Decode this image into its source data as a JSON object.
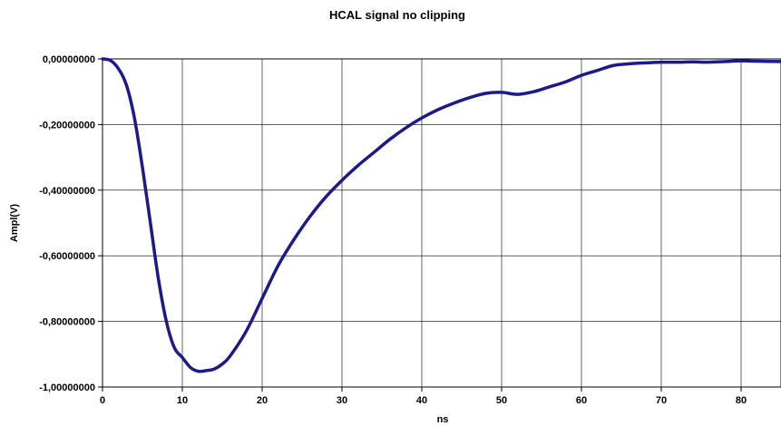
{
  "chart_data": {
    "type": "line",
    "title": "HCAL signal no clipping",
    "xlabel": "ns",
    "ylabel": "Ampl(V)",
    "xlim": [
      0,
      85
    ],
    "ylim": [
      -1.0,
      0.0
    ],
    "xticks": [
      0,
      10,
      20,
      30,
      40,
      50,
      60,
      70,
      80
    ],
    "xtick_labels": [
      "0",
      "10",
      "20",
      "30",
      "40",
      "50",
      "60",
      "70",
      "80"
    ],
    "yticks": [
      0.0,
      -0.2,
      -0.4,
      -0.6,
      -0.8,
      -1.0
    ],
    "ytick_labels": [
      "0,00000000",
      "-0,20000000",
      "-0,40000000",
      "-0,60000000",
      "-0,80000000",
      "-1,00000000"
    ],
    "grid": true,
    "legend": "none",
    "series": [
      {
        "color": "#1a1a8c",
        "x": [
          0,
          1,
          2,
          3,
          4,
          5,
          6,
          7,
          8,
          9,
          10,
          11,
          12,
          13,
          14,
          15,
          16,
          18,
          20,
          22,
          24,
          26,
          28,
          30,
          32,
          34,
          36,
          38,
          40,
          42,
          44,
          46,
          48,
          50,
          52,
          54,
          56,
          58,
          60,
          62,
          64,
          66,
          68,
          70,
          72,
          74,
          76,
          78,
          80,
          82,
          85
        ],
        "y": [
          0.0,
          -0.005,
          -0.03,
          -0.08,
          -0.18,
          -0.33,
          -0.5,
          -0.67,
          -0.8,
          -0.88,
          -0.91,
          -0.94,
          -0.952,
          -0.95,
          -0.945,
          -0.93,
          -0.905,
          -0.83,
          -0.73,
          -0.63,
          -0.55,
          -0.48,
          -0.42,
          -0.37,
          -0.325,
          -0.285,
          -0.245,
          -0.21,
          -0.18,
          -0.155,
          -0.135,
          -0.118,
          -0.105,
          -0.102,
          -0.108,
          -0.1,
          -0.085,
          -0.07,
          -0.05,
          -0.035,
          -0.02,
          -0.015,
          -0.012,
          -0.01,
          -0.01,
          -0.009,
          -0.01,
          -0.008,
          -0.006,
          -0.007,
          -0.008
        ]
      }
    ]
  }
}
